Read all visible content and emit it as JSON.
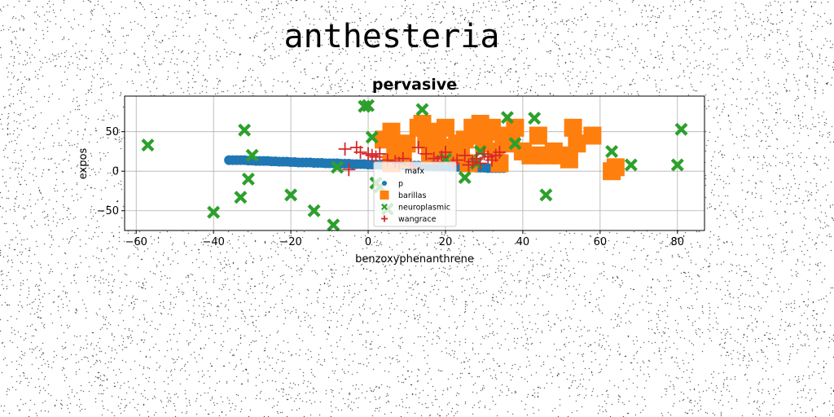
{
  "suptitle": "anthesteria",
  "chart_data": {
    "type": "scatter",
    "title": "pervasive",
    "xlabel": "benzoxyphenanthrene",
    "ylabel": "expos",
    "xlim": [
      -63,
      87
    ],
    "ylim": [
      -75,
      95
    ],
    "xticks": [
      -60,
      -40,
      -20,
      0,
      20,
      40,
      60,
      80
    ],
    "xtick_labels": [
      "−60",
      "−40",
      "−20",
      "0",
      "20",
      "40",
      "60",
      "80"
    ],
    "yticks": [
      -50,
      0,
      50
    ],
    "ytick_labels": [
      "−50",
      "0",
      "50"
    ],
    "grid": true,
    "legend": {
      "placement": "lower-center",
      "title": "mafx",
      "entries": [
        "p",
        "barillas",
        "neuroplasmic",
        "wangrace"
      ]
    },
    "series": [
      {
        "name": "p",
        "marker": "circle",
        "color": "#1f77b4",
        "x": [
          -36,
          -35,
          -34,
          -33,
          -32,
          -31,
          -30,
          -29,
          -28,
          -27,
          -26,
          -25,
          -24,
          -23,
          -22,
          -21,
          -20,
          -19,
          -18,
          -17,
          -16,
          -15,
          -14,
          -13,
          -12,
          -11,
          -10,
          -9,
          -8,
          -7,
          -6,
          -5,
          -4,
          -3,
          -2,
          -1,
          0,
          1,
          2,
          3,
          4,
          5,
          6,
          7,
          8,
          9,
          10,
          11,
          12,
          13,
          14,
          15,
          16,
          17,
          18,
          19,
          20,
          21,
          22,
          23,
          24,
          25,
          26,
          27,
          28,
          29,
          30,
          31,
          32,
          33,
          34,
          35
        ],
        "y": [
          14,
          14,
          14,
          14,
          14,
          13.5,
          13.5,
          13,
          13,
          13,
          13,
          12.5,
          12.5,
          12,
          12,
          12,
          11.5,
          11.5,
          11,
          11,
          11,
          11,
          10.5,
          10.5,
          10.5,
          10,
          10,
          10,
          10,
          9.5,
          9.5,
          9.5,
          9,
          9,
          9,
          9,
          8.5,
          8.5,
          8.5,
          8,
          8,
          8,
          8,
          7.5,
          7.5,
          7.5,
          7,
          7,
          7,
          7,
          6.5,
          6.5,
          6.5,
          6,
          6,
          6,
          6,
          5.5,
          5.5,
          5.5,
          5,
          5,
          5,
          5,
          4.5,
          4.5,
          4.5,
          4,
          4,
          4,
          4,
          4
        ]
      },
      {
        "name": "barillas",
        "marker": "square",
        "color": "#ff7f0e",
        "x": [
          4,
          6,
          7,
          8,
          10,
          13,
          14,
          15,
          17,
          18,
          20,
          21,
          22,
          23,
          24,
          25,
          27,
          28,
          29,
          30,
          31,
          32,
          33,
          35,
          37,
          38,
          40,
          42,
          44,
          46,
          48,
          50,
          52,
          53,
          54,
          58,
          63,
          64,
          6,
          9,
          16,
          19,
          26,
          34
        ],
        "y": [
          40,
          50,
          30,
          20,
          35,
          55,
          60,
          40,
          50,
          45,
          55,
          30,
          20,
          35,
          30,
          40,
          55,
          45,
          60,
          35,
          50,
          55,
          25,
          45,
          35,
          55,
          25,
          20,
          45,
          20,
          25,
          20,
          15,
          55,
          35,
          45,
          0,
          5,
          10,
          15,
          20,
          25,
          10,
          10
        ]
      },
      {
        "name": "neuroplasmic",
        "marker": "x",
        "color": "#2ca02c",
        "x": [
          -57,
          -40,
          -33,
          -32,
          -31,
          -30,
          -20,
          -14,
          -9,
          -8,
          -1,
          0,
          1,
          2,
          3,
          5,
          14,
          20,
          25,
          28,
          29,
          36,
          38,
          43,
          46,
          63,
          68,
          80,
          81
        ],
        "y": [
          33,
          -52,
          -33,
          52,
          -10,
          20,
          -30,
          -50,
          -68,
          5,
          82,
          83,
          43,
          -15,
          -20,
          -48,
          78,
          15,
          -8,
          10,
          25,
          68,
          35,
          67,
          -30,
          25,
          8,
          8,
          53
        ]
      },
      {
        "name": "wangrace",
        "marker": "plus",
        "color": "#d62728",
        "x": [
          -6,
          -5,
          -3,
          -2,
          0,
          1,
          2,
          3,
          5,
          7,
          8,
          9,
          11,
          13,
          15,
          17,
          18,
          19,
          20,
          22,
          23,
          25,
          26,
          27,
          28,
          29,
          30,
          31,
          32,
          33,
          34,
          12
        ],
        "y": [
          28,
          2,
          30,
          24,
          22,
          20,
          18,
          22,
          14,
          12,
          10,
          16,
          8,
          30,
          22,
          16,
          12,
          18,
          24,
          10,
          14,
          20,
          8,
          12,
          16,
          10,
          22,
          18,
          14,
          20,
          24,
          4
        ]
      }
    ]
  }
}
